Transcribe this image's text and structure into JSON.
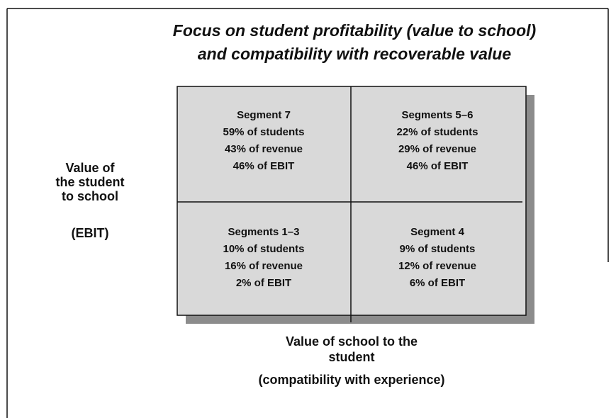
{
  "title": [
    "Focus on student profitability (value to school)",
    "and compatibility with recoverable value"
  ],
  "y_axis_label": [
    "Value of",
    "the student",
    "to school",
    "(EBIT)"
  ],
  "x_axis_label": [
    "Value of school to the",
    "student",
    "(compatibility with experience)"
  ],
  "quadrants": [
    {
      "lines": [
        "Segment 7",
        "59% of students",
        "43% of revenue",
        "46% of EBIT"
      ]
    },
    {
      "lines": [
        "Segments 5–6",
        "22% of students",
        "29% of revenue",
        "46% of EBIT"
      ]
    },
    {
      "lines": [
        "Segments 1–3",
        "10% of students",
        "16% of revenue",
        "2% of EBIT"
      ]
    },
    {
      "lines": [
        "Segment 4",
        "9% of students",
        "12% of revenue",
        "6% of EBIT"
      ]
    }
  ]
}
